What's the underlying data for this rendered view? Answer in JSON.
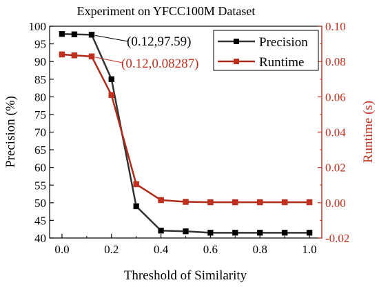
{
  "chart_data": {
    "type": "line",
    "title": "Experiment on YFCC100M Dataset",
    "xlabel": "Threshold of Similarity",
    "ylabel_left": "Precision (%)",
    "ylabel_right": "Runtime (s)",
    "xlim": [
      -0.05,
      1.05
    ],
    "ylim_left": [
      40,
      100
    ],
    "ylim_right": [
      -0.02,
      0.1
    ],
    "x_ticks": [
      "0.0",
      "0.2",
      "0.4",
      "0.6",
      "0.8",
      "1.0"
    ],
    "y_ticks_left": [
      "40",
      "45",
      "50",
      "55",
      "60",
      "65",
      "70",
      "75",
      "80",
      "85",
      "90",
      "95",
      "100"
    ],
    "y_ticks_right": [
      "-0.02",
      "0.00",
      "0.02",
      "0.04",
      "0.06",
      "0.08",
      "0.10"
    ],
    "x": [
      0.0,
      0.05,
      0.12,
      0.2,
      0.3,
      0.4,
      0.5,
      0.6,
      0.7,
      0.8,
      0.9,
      1.0
    ],
    "series": [
      {
        "name": "Precision",
        "axis": "left",
        "color": "#333333",
        "marker_color": "#000000",
        "values": [
          97.8,
          97.7,
          97.59,
          85.0,
          49.0,
          42.1,
          41.9,
          41.5,
          41.5,
          41.5,
          41.5,
          41.5
        ]
      },
      {
        "name": "Runtime",
        "axis": "right",
        "color": "#b02a1a",
        "marker_color": "#c0301e",
        "values": [
          0.084,
          0.0835,
          0.08287,
          0.061,
          0.0105,
          0.0015,
          0.0005,
          0.0003,
          0.0003,
          0.0003,
          0.0003,
          0.0003
        ]
      }
    ],
    "annotations": [
      {
        "text": "(0.12,97.59)",
        "series": "Precision",
        "color": "#000000"
      },
      {
        "text": "(0.12,0.08287)",
        "series": "Runtime",
        "color": "#c0301e"
      }
    ],
    "legend_position": "top-right",
    "grid": false
  }
}
